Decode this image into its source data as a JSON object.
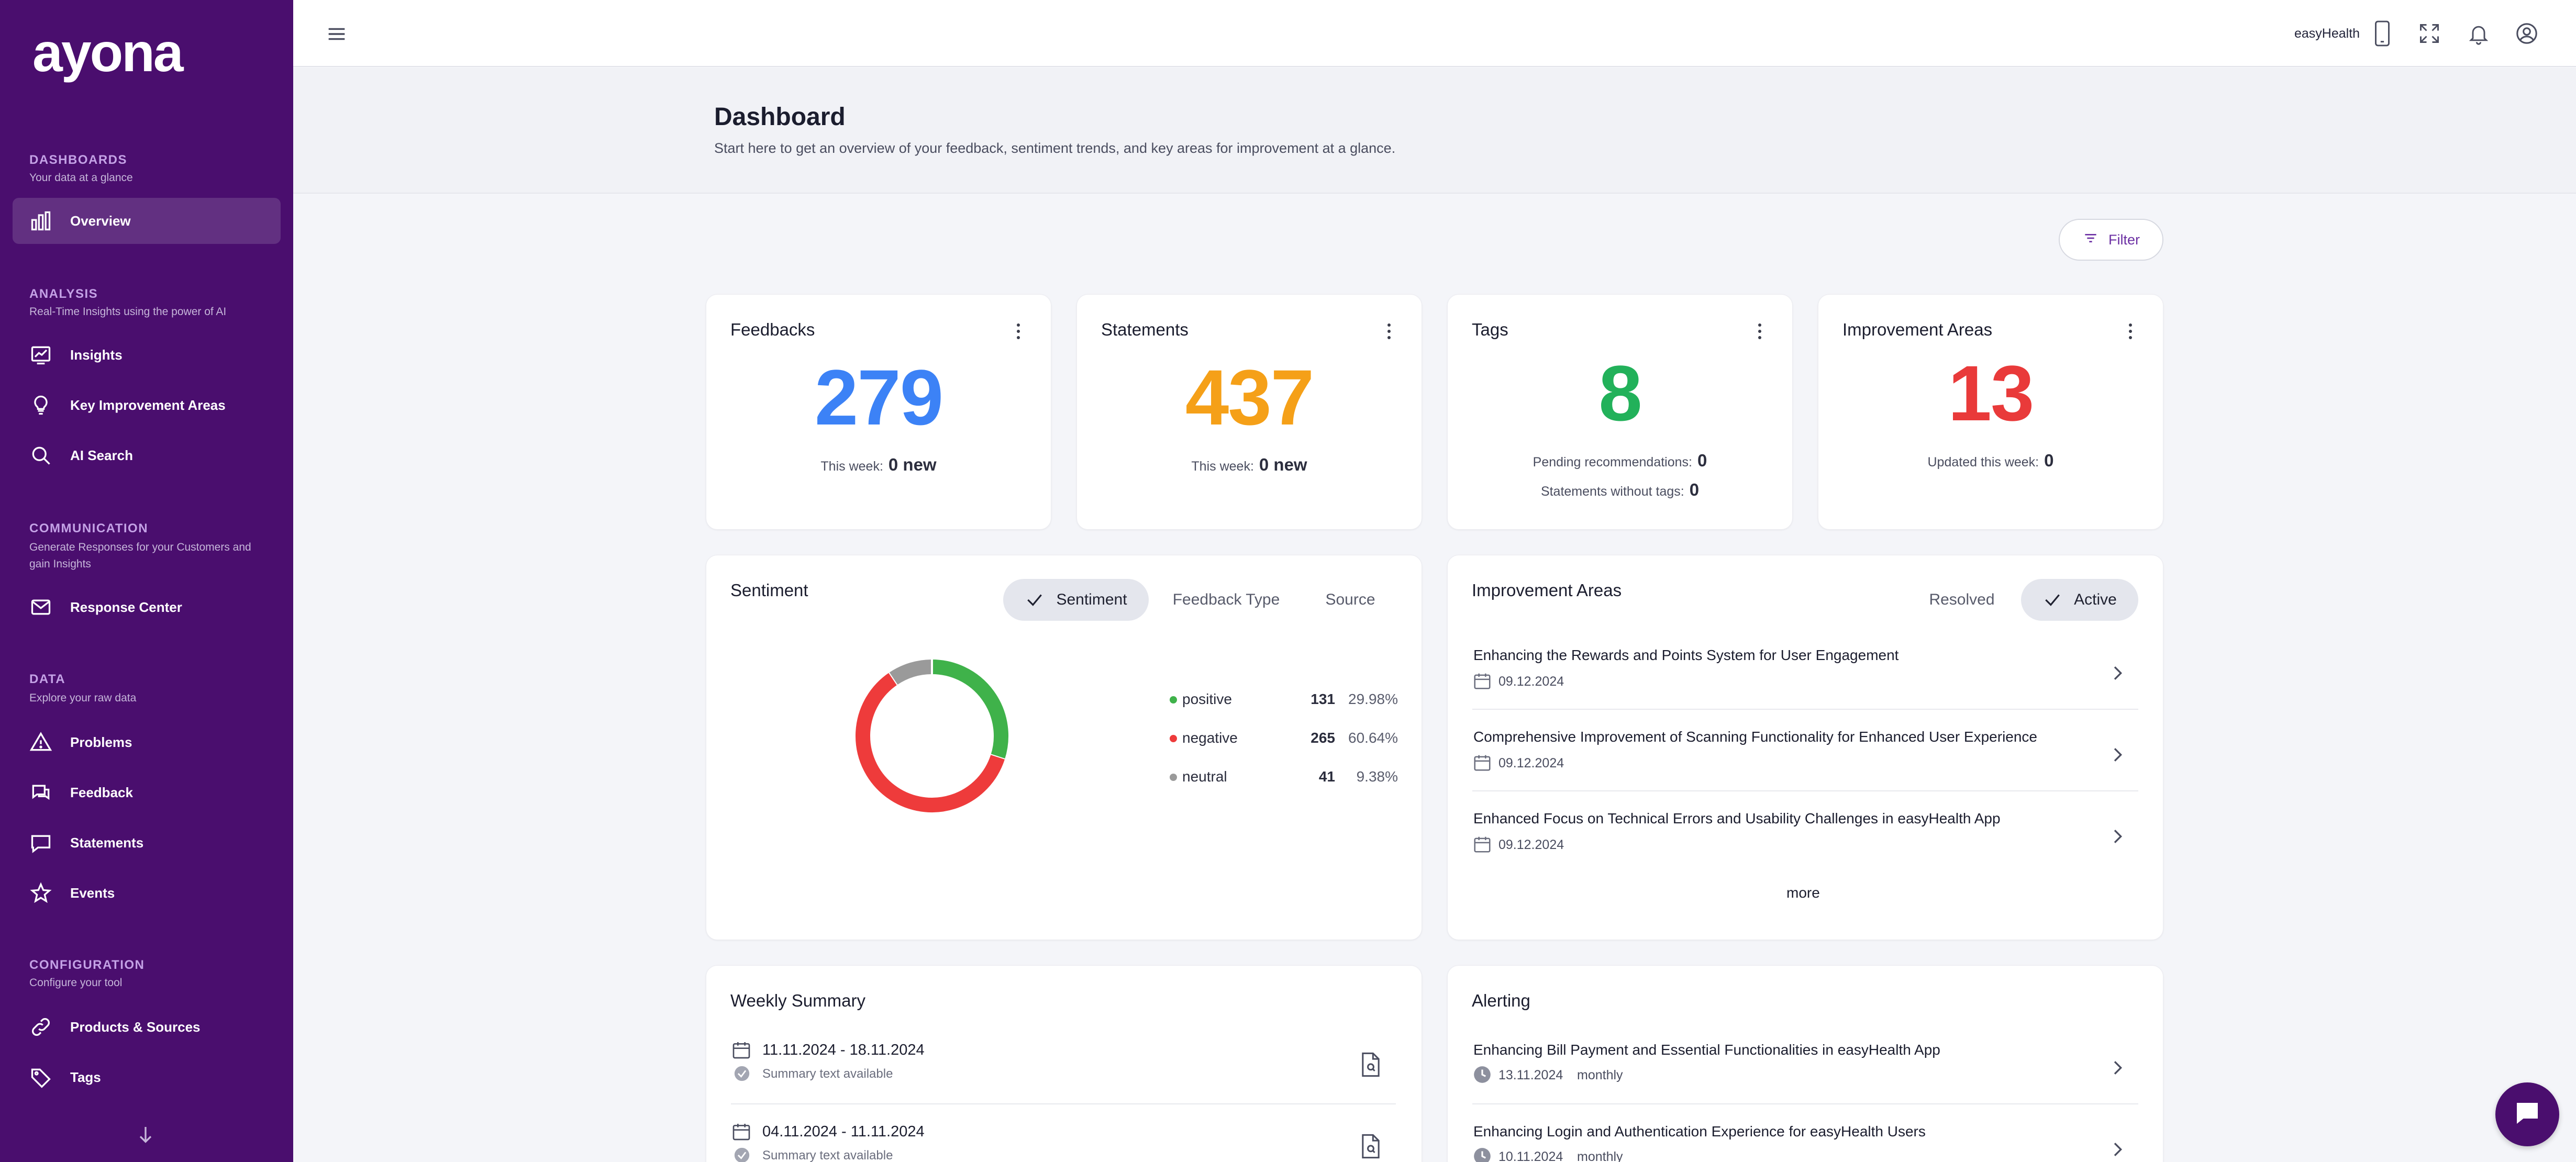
{
  "app": {
    "logo": "ayona"
  },
  "colors": {
    "sidebar_bg": "#4a0e6e",
    "accent": "#6b2fa3",
    "feedbacks_num": "#3c82f6",
    "statements_num": "#f5a018",
    "tags_num": "#22b15a",
    "improvement_num": "#e93a3a",
    "positive": "#3fb24a",
    "negative": "#ee3b3b",
    "neutral": "#9a9a9a"
  },
  "sidebar": {
    "sections": [
      {
        "heading": "DASHBOARDS",
        "sub": "Your data at a glance",
        "items": [
          {
            "label": "Overview",
            "icon": "bar-chart-icon",
            "active": true
          }
        ]
      },
      {
        "heading": "ANALYSIS",
        "sub": "Real-Time Insights using the power of AI",
        "items": [
          {
            "label": "Insights",
            "icon": "trend-chart-icon"
          },
          {
            "label": "Key Improvement Areas",
            "icon": "lightbulb-icon"
          },
          {
            "label": "AI Search",
            "icon": "search-icon"
          }
        ]
      },
      {
        "heading": "COMMUNICATION",
        "sub": "Generate Responses for your Customers and gain Insights",
        "items": [
          {
            "label": "Response Center",
            "icon": "mail-icon"
          }
        ]
      },
      {
        "heading": "DATA",
        "sub": "Explore your raw data",
        "items": [
          {
            "label": "Problems",
            "icon": "warning-icon"
          },
          {
            "label": "Feedback",
            "icon": "chat-icon"
          },
          {
            "label": "Statements",
            "icon": "speech-bubble-icon"
          },
          {
            "label": "Events",
            "icon": "star-icon"
          }
        ]
      },
      {
        "heading": "CONFIGURATION",
        "sub": "Configure your tool",
        "items": [
          {
            "label": "Products & Sources",
            "icon": "link-icon"
          },
          {
            "label": "Tags",
            "icon": "tag-icon"
          }
        ]
      }
    ]
  },
  "topbar": {
    "brand": "easyHealth"
  },
  "page": {
    "title": "Dashboard",
    "description": "Start here to get an overview of your feedback, sentiment trends, and key areas for improvement at a glance.",
    "filter_label": "Filter"
  },
  "stats": {
    "feedbacks": {
      "title": "Feedbacks",
      "value": "279",
      "line_label": "This week:",
      "line_value": "0 new"
    },
    "statements": {
      "title": "Statements",
      "value": "437",
      "line_label": "This week:",
      "line_value": "0 new"
    },
    "tags": {
      "title": "Tags",
      "value": "8",
      "pending_label": "Pending recommendations:",
      "pending_value": "0",
      "without_label": "Statements without tags:",
      "without_value": "0"
    },
    "improvement": {
      "title": "Improvement Areas",
      "value": "13",
      "line_label": "Updated this week:",
      "line_value": "0"
    }
  },
  "sentiment": {
    "title": "Sentiment",
    "tabs": [
      "Sentiment",
      "Feedback Type",
      "Source"
    ],
    "active_tab": 0
  },
  "chart_data": {
    "type": "pie",
    "donut": true,
    "categories": [
      "positive",
      "negative",
      "neutral"
    ],
    "values": [
      131,
      265,
      41
    ],
    "percent_labels": [
      "29.98%",
      "60.64%",
      "9.38%"
    ],
    "colors": [
      "#3fb24a",
      "#ee3b3b",
      "#9a9a9a"
    ],
    "legend": "right"
  },
  "improvement_areas": {
    "title": "Improvement Areas",
    "tabs": [
      "Resolved",
      "Active"
    ],
    "active_tab": 1,
    "items": [
      {
        "title": "Enhancing the Rewards and Points System for User Engagement",
        "date": "09.12.2024"
      },
      {
        "title": "Comprehensive Improvement of Scanning Functionality for Enhanced User Experience",
        "date": "09.12.2024"
      },
      {
        "title": "Enhanced Focus on Technical Errors and Usability Challenges in easyHealth App",
        "date": "09.12.2024"
      }
    ],
    "more_label": "more"
  },
  "weekly_summary": {
    "title": "Weekly Summary",
    "items": [
      {
        "range": "11.11.2024 - 18.11.2024",
        "status": "Summary text available"
      },
      {
        "range": "04.11.2024 - 11.11.2024",
        "status": "Summary text available"
      }
    ]
  },
  "alerting": {
    "title": "Alerting",
    "items": [
      {
        "title": "Enhancing Bill Payment and Essential Functionalities in easyHealth App",
        "date": "13.11.2024",
        "frequency": "monthly"
      },
      {
        "title": "Enhancing Login and Authentication Experience for easyHealth Users",
        "date": "10.11.2024",
        "frequency": "monthly"
      }
    ]
  }
}
